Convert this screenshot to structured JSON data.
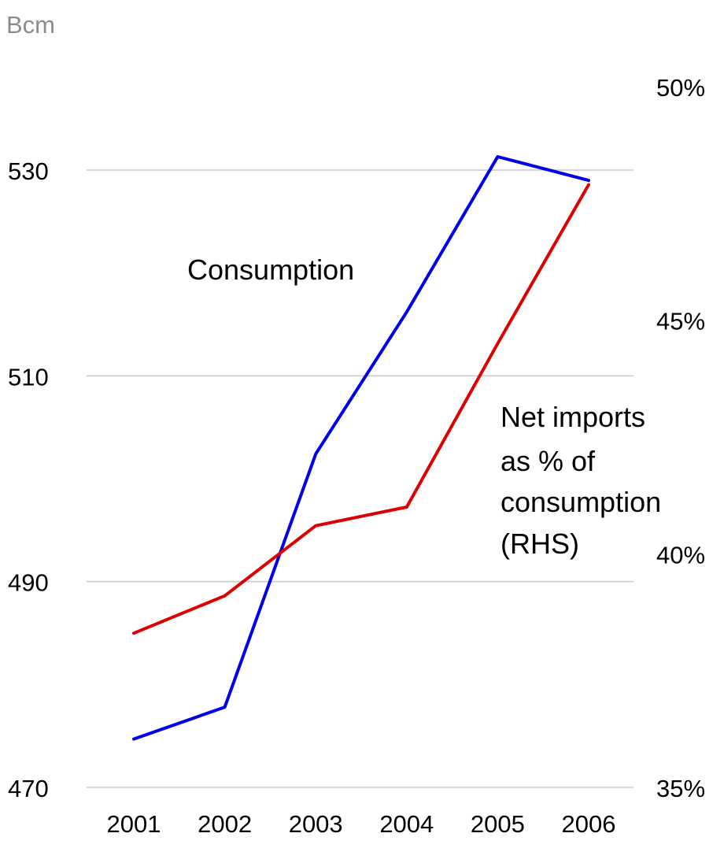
{
  "chart_data": {
    "type": "line",
    "y_unit_label": "Bcm",
    "categories": [
      "2001",
      "2002",
      "2003",
      "2004",
      "2005",
      "2006"
    ],
    "y_left": {
      "range": [
        470,
        530
      ],
      "ticks": [
        "470",
        "490",
        "510",
        "530"
      ]
    },
    "y_right": {
      "range": [
        35,
        50
      ],
      "ticks": [
        "35%",
        "40%",
        "45%",
        "50%"
      ]
    },
    "grid": true,
    "series": [
      {
        "name": "Consumption",
        "axis": "left",
        "color": "#0000ee",
        "values": [
          474.7,
          477.8,
          502.4,
          516.2,
          531.3,
          529.0
        ]
      },
      {
        "name": "Net imports as % of consumption (RHS)",
        "name_lines": [
          "Net imports",
          "as % of",
          "consumption",
          "(RHS)"
        ],
        "axis": "right",
        "color": "#dd0000",
        "values": [
          38.3,
          39.1,
          40.6,
          41.0,
          44.5,
          47.9
        ]
      }
    ]
  }
}
